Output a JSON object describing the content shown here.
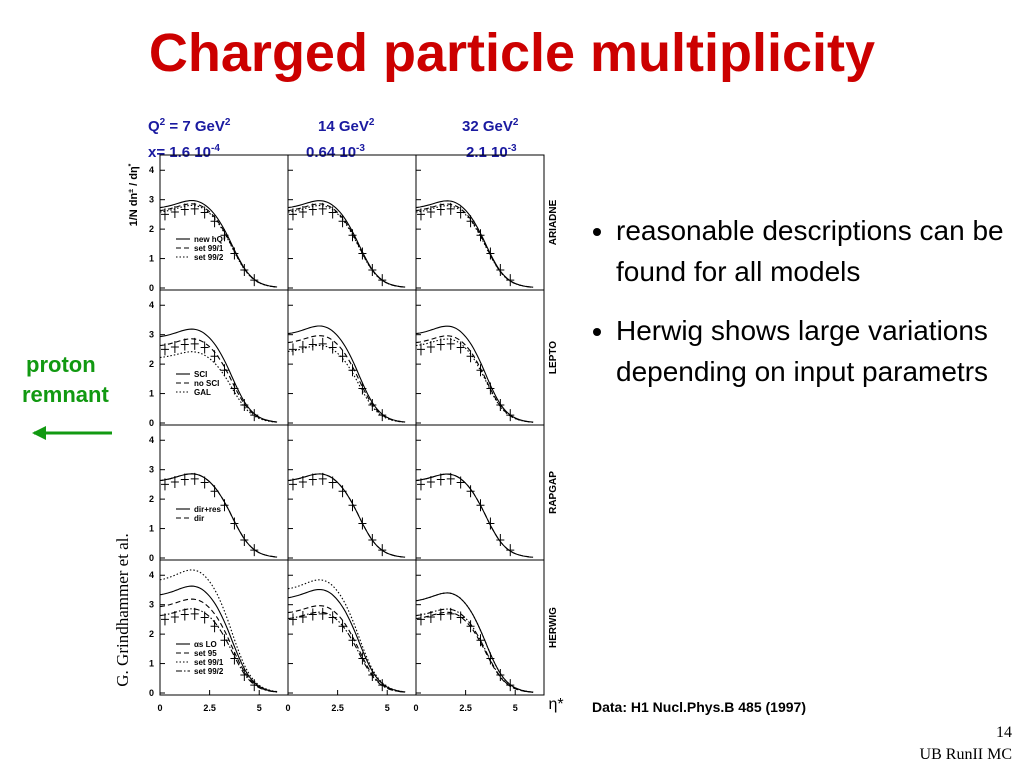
{
  "slide": {
    "title": "Charged particle multiplicity",
    "bullets": [
      "reasonable descriptions can be found for all models",
      "Herwig shows large variations depending on input parametrs"
    ],
    "side_label": [
      "proton",
      "remnant"
    ],
    "credit": "G. Grindhammer et al.",
    "reference": "Data: H1 Nucl.Phys.B 485 (1997)",
    "page_number": "14",
    "footer": "UB RunII MC"
  },
  "figure": {
    "columns": [
      {
        "line1": [
          "Q",
          "2",
          " = 7 GeV",
          "2"
        ],
        "line2": [
          "x= 1.6 10",
          "-4"
        ]
      },
      {
        "line1": [
          "14 GeV",
          "2"
        ],
        "line2": [
          "0.64 10",
          "-3"
        ]
      },
      {
        "line1": [
          "32 GeV",
          "2"
        ],
        "line2": [
          "2.1 10",
          "-3"
        ]
      }
    ],
    "y_label": [
      "1/N dn",
      "±",
      " / dη",
      "*"
    ],
    "x_label": "η*",
    "xticks": [
      0,
      2.5,
      5
    ],
    "yticks": [
      0,
      1,
      2,
      3,
      4
    ],
    "xlim": [
      0,
      6.45
    ],
    "ylim": [
      0,
      4.45
    ],
    "rows": [
      {
        "model": "ARIADNE",
        "legend": [
          "new hQ³",
          "set 99/1",
          "set 99/2"
        ]
      },
      {
        "model": "LEPTO",
        "legend": [
          "SCI",
          "no SCI",
          "GAL"
        ]
      },
      {
        "model": "RAPGAP",
        "legend": [
          "dir+res",
          "dir"
        ]
      },
      {
        "model": "HERWIG",
        "legend": [
          "αs LO",
          "set 95",
          "set 99/1",
          "set 99/2"
        ]
      }
    ]
  }
}
